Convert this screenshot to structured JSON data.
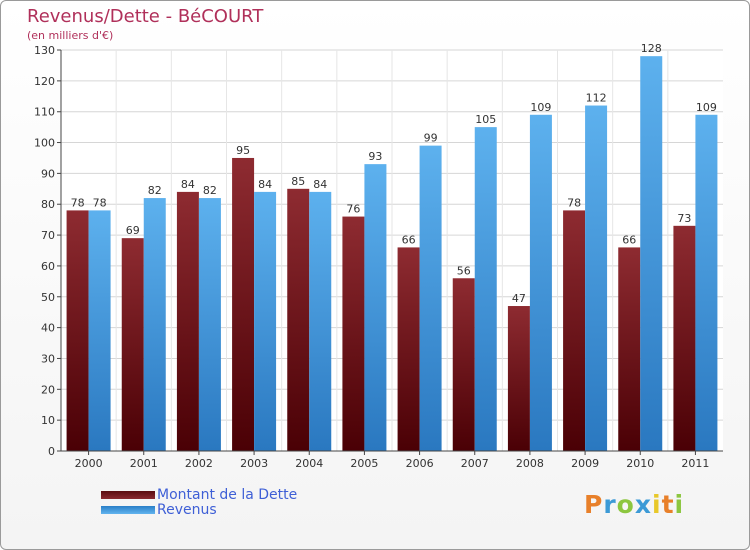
{
  "chart_data": {
    "type": "bar",
    "title": "Revenus/Dette - BéCOURT",
    "subtitle": "(en milliers d'€)",
    "categories": [
      "2000",
      "2001",
      "2002",
      "2003",
      "2004",
      "2005",
      "2006",
      "2007",
      "2008",
      "2009",
      "2010",
      "2011"
    ],
    "series": [
      {
        "name": "Montant de la Dette",
        "color": "#7a1e25",
        "values": [
          78,
          69,
          84,
          95,
          85,
          76,
          66,
          56,
          47,
          78,
          66,
          73
        ]
      },
      {
        "name": "Revenus",
        "color": "#4aa0e4",
        "values": [
          78,
          82,
          82,
          84,
          84,
          93,
          99,
          105,
          109,
          112,
          128,
          109
        ]
      }
    ],
    "ylim": [
      0,
      130
    ],
    "yticks": [
      0,
      10,
      20,
      30,
      40,
      50,
      60,
      70,
      80,
      90,
      100,
      110,
      120,
      130
    ],
    "grid": true,
    "legend": "bottom-left"
  },
  "logo": {
    "letters": [
      "P",
      "r",
      "o",
      "x",
      "i",
      "t",
      "i"
    ],
    "colors": [
      "#e8802a",
      "#3c9ad6",
      "#8cc63f",
      "#3c9ad6",
      "#e8c82a",
      "#e8802a",
      "#8cc63f"
    ]
  }
}
